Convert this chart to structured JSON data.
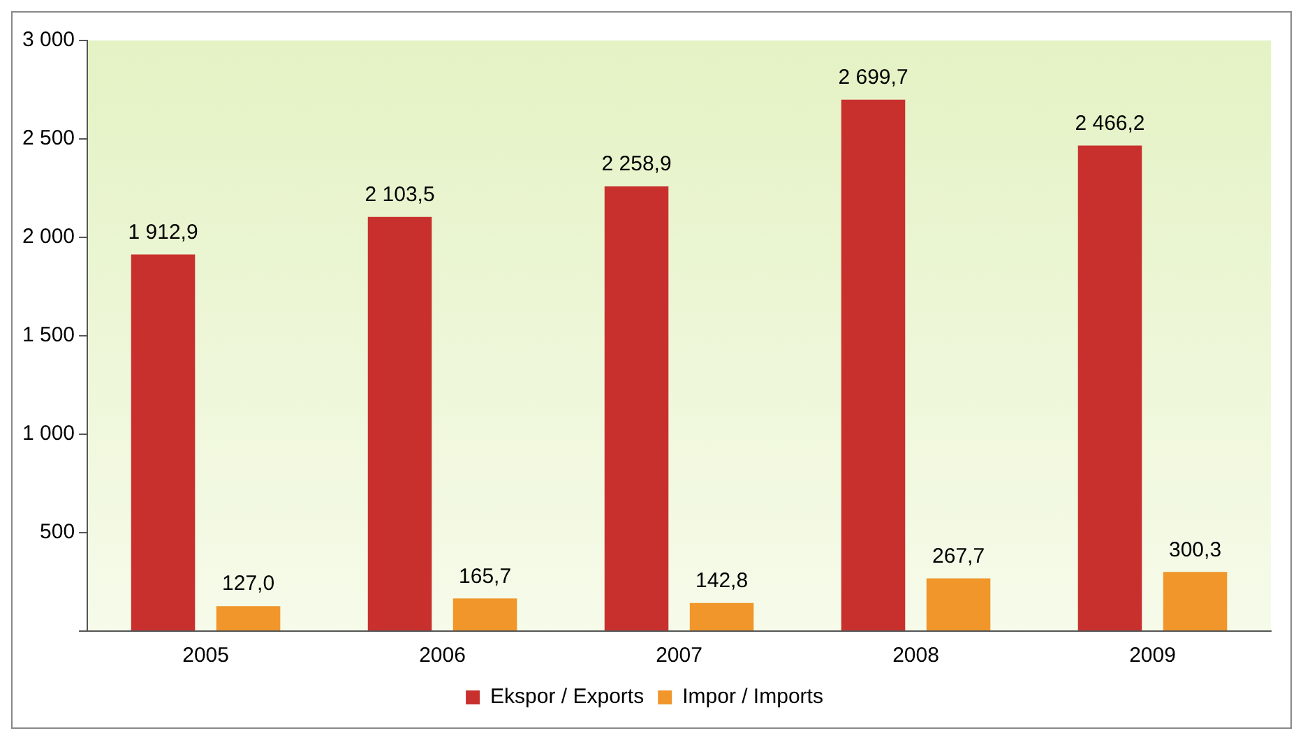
{
  "chart_data": {
    "type": "bar",
    "categories": [
      "2005",
      "2006",
      "2007",
      "2008",
      "2009"
    ],
    "series": [
      {
        "name": "Ekspor / Exports",
        "color": "#c8302e",
        "values": [
          1912.9,
          2103.5,
          2258.9,
          2699.7,
          2466.2
        ],
        "value_labels": [
          "1 912,9",
          "2 103,5",
          "2 258,9",
          "2 699,7",
          "2 466,2"
        ]
      },
      {
        "name": "Impor / Imports",
        "color": "#f0962a",
        "values": [
          127.0,
          165.7,
          142.8,
          267.7,
          300.3
        ],
        "value_labels": [
          "127,0",
          "165,7",
          "142,8",
          "267,7",
          "300,3"
        ]
      }
    ],
    "ylim": [
      0,
      3000
    ],
    "yticks": [
      {
        "value": 0,
        "label": null
      },
      500,
      {
        "value": 1000,
        "label": "1 000"
      },
      {
        "value": 1500,
        "label": "1 500"
      },
      {
        "value": 2000,
        "label": "2 000"
      },
      {
        "value": 2500,
        "label": "2 500"
      },
      {
        "value": 3000,
        "label": "3 000"
      }
    ],
    "grid": false,
    "legend": "bottom"
  }
}
